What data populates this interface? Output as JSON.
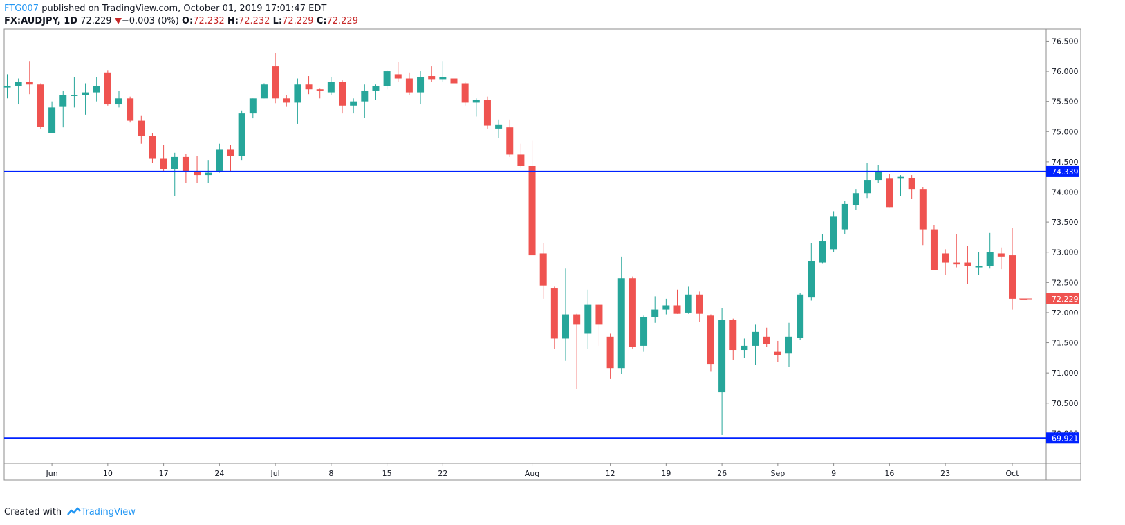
{
  "header": {
    "author": "FTG007",
    "published": " published on TradingView.com, October 01, 2019 17:01:47 EDT",
    "symbol": "FX:AUDJPY, 1D",
    "last": "72.229",
    "change": "−0.003 (0%)",
    "o_label": "O:",
    "o_value": "72.232",
    "h_label": "H:",
    "h_value": "72.232",
    "l_label": "L:",
    "l_value": "72.229",
    "c_label": "C:",
    "c_value": "72.229"
  },
  "footer": {
    "created": "Created with",
    "brand": "TradingView"
  },
  "colors": {
    "up": "#26a69a",
    "down": "#ef5350",
    "hline": "#0022ff",
    "last_tag": "#ef5350",
    "hline_tag": "#0022ff"
  },
  "chart_data": {
    "type": "candlestick",
    "ylim": [
      69.5,
      76.7
    ],
    "y_ticks": [
      "70.000",
      "70.500",
      "71.000",
      "71.500",
      "72.000",
      "72.500",
      "73.000",
      "73.500",
      "74.000",
      "74.500",
      "75.000",
      "75.500",
      "76.000",
      "76.500"
    ],
    "x_ticks": [
      {
        "label": "Jun",
        "i": 4
      },
      {
        "label": "10",
        "i": 9
      },
      {
        "label": "17",
        "i": 14
      },
      {
        "label": "24",
        "i": 19
      },
      {
        "label": "Jul",
        "i": 24
      },
      {
        "label": "8",
        "i": 29
      },
      {
        "label": "15",
        "i": 34
      },
      {
        "label": "22",
        "i": 39
      },
      {
        "label": "Aug",
        "i": 47
      },
      {
        "label": "12",
        "i": 54
      },
      {
        "label": "19",
        "i": 59
      },
      {
        "label": "26",
        "i": 64
      },
      {
        "label": "Sep",
        "i": 69
      },
      {
        "label": "9",
        "i": 74
      },
      {
        "label": "16",
        "i": 79
      },
      {
        "label": "23",
        "i": 84
      },
      {
        "label": "Oct",
        "i": 90
      }
    ],
    "horizontal_lines": [
      {
        "value": 74.339,
        "label": "74.339"
      },
      {
        "value": 69.921,
        "label": "69.921"
      }
    ],
    "last_price": {
      "value": 72.229,
      "label": "72.229"
    },
    "candles": [
      [
        75.73,
        75.95,
        75.55,
        75.75
      ],
      [
        75.75,
        75.88,
        75.45,
        75.82
      ],
      [
        75.82,
        76.17,
        75.62,
        75.78
      ],
      [
        75.78,
        75.8,
        75.05,
        75.08
      ],
      [
        74.98,
        75.5,
        74.98,
        75.4
      ],
      [
        75.42,
        75.68,
        75.07,
        75.6
      ],
      [
        75.6,
        75.9,
        75.4,
        75.6
      ],
      [
        75.6,
        75.8,
        75.28,
        75.65
      ],
      [
        75.65,
        75.9,
        75.5,
        75.75
      ],
      [
        75.98,
        76.02,
        75.43,
        75.45
      ],
      [
        75.45,
        75.68,
        75.4,
        75.55
      ],
      [
        75.55,
        75.58,
        75.15,
        75.18
      ],
      [
        75.18,
        75.27,
        74.8,
        74.93
      ],
      [
        74.93,
        74.97,
        74.48,
        74.55
      ],
      [
        74.55,
        74.78,
        74.35,
        74.38
      ],
      [
        74.38,
        74.65,
        73.93,
        74.58
      ],
      [
        74.58,
        74.63,
        74.15,
        74.35
      ],
      [
        74.35,
        74.6,
        74.15,
        74.28
      ],
      [
        74.28,
        74.52,
        74.15,
        74.32
      ],
      [
        74.35,
        74.8,
        74.32,
        74.7
      ],
      [
        74.7,
        74.78,
        74.35,
        74.6
      ],
      [
        74.6,
        75.35,
        74.52,
        75.3
      ],
      [
        75.3,
        75.55,
        75.22,
        75.55
      ],
      [
        75.55,
        75.8,
        75.55,
        75.78
      ],
      [
        76.08,
        76.3,
        75.47,
        75.55
      ],
      [
        75.55,
        75.6,
        75.42,
        75.48
      ],
      [
        75.48,
        75.88,
        75.13,
        75.78
      ],
      [
        75.78,
        75.92,
        75.62,
        75.7
      ],
      [
        75.7,
        75.72,
        75.55,
        75.68
      ],
      [
        75.65,
        75.9,
        75.6,
        75.82
      ],
      [
        75.82,
        75.85,
        75.3,
        75.43
      ],
      [
        75.43,
        75.55,
        75.3,
        75.5
      ],
      [
        75.5,
        75.78,
        75.23,
        75.68
      ],
      [
        75.68,
        75.78,
        75.52,
        75.75
      ],
      [
        75.75,
        76.02,
        75.7,
        76.0
      ],
      [
        75.95,
        76.15,
        75.82,
        75.88
      ],
      [
        75.88,
        75.98,
        75.6,
        75.65
      ],
      [
        75.65,
        76.0,
        75.45,
        75.9
      ],
      [
        75.92,
        76.08,
        75.82,
        75.87
      ],
      [
        75.87,
        76.17,
        75.82,
        75.9
      ],
      [
        75.88,
        76.08,
        75.78,
        75.8
      ],
      [
        75.8,
        75.82,
        75.43,
        75.48
      ],
      [
        75.48,
        75.55,
        75.25,
        75.52
      ],
      [
        75.52,
        75.58,
        75.05,
        75.1
      ],
      [
        75.05,
        75.2,
        74.9,
        75.12
      ],
      [
        75.07,
        75.2,
        74.58,
        74.62
      ],
      [
        74.62,
        74.8,
        74.4,
        74.43
      ],
      [
        74.43,
        74.85,
        72.95,
        72.95
      ],
      [
        72.98,
        73.15,
        72.23,
        72.45
      ],
      [
        72.4,
        72.43,
        71.4,
        71.57
      ],
      [
        71.57,
        72.73,
        71.2,
        71.97
      ],
      [
        71.97,
        71.98,
        70.73,
        71.8
      ],
      [
        71.65,
        72.38,
        71.4,
        72.13
      ],
      [
        72.13,
        72.15,
        71.45,
        71.8
      ],
      [
        71.6,
        71.65,
        70.9,
        71.08
      ],
      [
        71.08,
        72.93,
        70.98,
        72.57
      ],
      [
        72.57,
        72.6,
        71.4,
        71.43
      ],
      [
        71.45,
        71.95,
        71.35,
        71.92
      ],
      [
        71.92,
        72.27,
        71.83,
        72.05
      ],
      [
        72.05,
        72.23,
        71.97,
        72.12
      ],
      [
        72.12,
        72.38,
        71.98,
        71.98
      ],
      [
        72.0,
        72.43,
        71.98,
        72.3
      ],
      [
        72.3,
        72.35,
        71.85,
        71.98
      ],
      [
        71.95,
        71.97,
        71.02,
        71.15
      ],
      [
        70.68,
        72.08,
        69.97,
        71.88
      ],
      [
        71.88,
        71.9,
        71.22,
        71.38
      ],
      [
        71.38,
        71.57,
        71.25,
        71.45
      ],
      [
        71.45,
        71.8,
        71.13,
        71.68
      ],
      [
        71.6,
        71.75,
        71.43,
        71.48
      ],
      [
        71.35,
        71.53,
        71.18,
        71.3
      ],
      [
        71.32,
        71.83,
        71.1,
        71.6
      ],
      [
        71.58,
        72.33,
        71.55,
        72.3
      ],
      [
        72.25,
        73.15,
        72.2,
        72.85
      ],
      [
        72.83,
        73.3,
        72.82,
        73.18
      ],
      [
        73.05,
        73.68,
        73.0,
        73.6
      ],
      [
        73.38,
        73.85,
        73.3,
        73.8
      ],
      [
        73.78,
        74.05,
        73.7,
        73.98
      ],
      [
        73.98,
        74.48,
        73.9,
        74.2
      ],
      [
        74.2,
        74.45,
        74.15,
        74.35
      ],
      [
        74.22,
        74.3,
        73.75,
        73.75
      ],
      [
        74.22,
        74.28,
        73.93,
        74.25
      ],
      [
        74.23,
        74.28,
        73.88,
        74.05
      ],
      [
        74.05,
        74.08,
        73.12,
        73.38
      ],
      [
        73.38,
        73.45,
        72.7,
        72.7
      ],
      [
        72.98,
        73.05,
        72.62,
        72.83
      ],
      [
        72.83,
        73.3,
        72.75,
        72.8
      ],
      [
        72.83,
        73.1,
        72.48,
        72.77
      ],
      [
        72.75,
        73.0,
        72.62,
        72.77
      ],
      [
        72.77,
        73.32,
        72.73,
        73.0
      ],
      [
        72.98,
        73.08,
        72.72,
        72.93
      ],
      [
        72.95,
        73.4,
        72.05,
        72.23
      ],
      [
        72.23,
        72.23,
        72.229,
        72.229
      ]
    ]
  }
}
